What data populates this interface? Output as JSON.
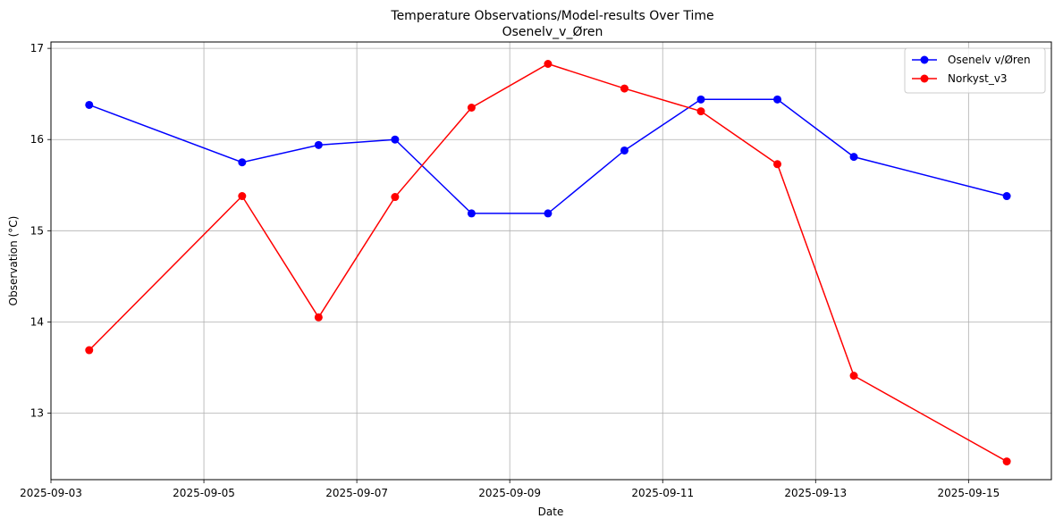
{
  "chart_data": {
    "type": "line",
    "title": "Temperature Observations/Model-results Over Time",
    "subtitle": "Osenelv_v_Øren",
    "xlabel": "Date",
    "ylabel": "Observation (°C)",
    "x_type": "date",
    "xlim": [
      "2025-09-03T00:00",
      "2025-09-16T02:00"
    ],
    "ylim": [
      12.27,
      17.07
    ],
    "x_ticks": [
      "2025-09-03",
      "2025-09-05",
      "2025-09-07",
      "2025-09-09",
      "2025-09-11",
      "2025-09-13",
      "2025-09-15"
    ],
    "y_ticks": [
      13,
      14,
      15,
      16,
      17
    ],
    "grid": true,
    "legend_position": "top-right",
    "x": [
      "2025-09-03T12:00",
      "2025-09-05T12:00",
      "2025-09-06T12:00",
      "2025-09-07T12:00",
      "2025-09-08T12:00",
      "2025-09-09T12:00",
      "2025-09-10T12:00",
      "2025-09-11T12:00",
      "2025-09-12T12:00",
      "2025-09-13T12:00",
      "2025-09-15T12:00"
    ],
    "series": [
      {
        "name": "Osenelv v/Øren",
        "color": "#0000ff",
        "values": [
          16.38,
          15.75,
          15.94,
          16.0,
          15.19,
          15.19,
          15.88,
          16.44,
          16.44,
          15.81,
          15.38
        ]
      },
      {
        "name": "Norkyst_v3",
        "color": "#ff0000",
        "values": [
          13.69,
          15.38,
          14.05,
          15.37,
          16.35,
          16.83,
          16.56,
          16.31,
          15.73,
          13.41,
          12.47
        ]
      }
    ]
  }
}
